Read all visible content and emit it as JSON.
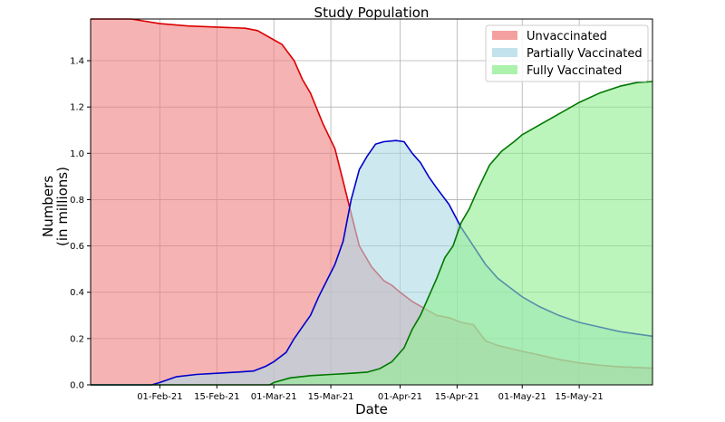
{
  "chart_data": {
    "type": "area",
    "title": "Study Population",
    "xlabel": "Date",
    "ylabel_line1": "Numbers",
    "ylabel_line2": "(in millions)",
    "x_range": [
      "2021-01-15",
      "2021-06-02"
    ],
    "ylim": [
      0,
      1.58
    ],
    "grid": true,
    "legend_position": "top-right",
    "x_ticks": [
      {
        "date": "2021-02-01",
        "label": "01-Feb-21"
      },
      {
        "date": "2021-02-15",
        "label": "15-Feb-21"
      },
      {
        "date": "2021-03-01",
        "label": "01-Mar-21"
      },
      {
        "date": "2021-03-15",
        "label": "15-Mar-21"
      },
      {
        "date": "2021-04-01",
        "label": "01-Apr-21"
      },
      {
        "date": "2021-04-15",
        "label": "15-Apr-21"
      },
      {
        "date": "2021-05-01",
        "label": "01-May-21"
      },
      {
        "date": "2021-05-15",
        "label": "15-May-21"
      }
    ],
    "y_ticks": [
      {
        "value": 0.0,
        "label": "0.0"
      },
      {
        "value": 0.2,
        "label": "0.2"
      },
      {
        "value": 0.4,
        "label": "0.4"
      },
      {
        "value": 0.6,
        "label": "0.6"
      },
      {
        "value": 0.8,
        "label": "0.8"
      },
      {
        "value": 1.0,
        "label": "1.0"
      },
      {
        "value": 1.2,
        "label": "1.2"
      },
      {
        "value": 1.4,
        "label": "1.4"
      }
    ],
    "series": [
      {
        "name": "Unvaccinated",
        "line_color": "#dd0000",
        "fill_color": "#f08080",
        "points": [
          [
            "2021-01-15",
            1.58
          ],
          [
            "2021-01-25",
            1.58
          ],
          [
            "2021-02-01",
            1.56
          ],
          [
            "2021-02-08",
            1.55
          ],
          [
            "2021-02-15",
            1.545
          ],
          [
            "2021-02-22",
            1.54
          ],
          [
            "2021-02-25",
            1.53
          ],
          [
            "2021-03-01",
            1.49
          ],
          [
            "2021-03-03",
            1.47
          ],
          [
            "2021-03-06",
            1.4
          ],
          [
            "2021-03-08",
            1.32
          ],
          [
            "2021-03-10",
            1.26
          ],
          [
            "2021-03-13",
            1.13
          ],
          [
            "2021-03-16",
            1.02
          ],
          [
            "2021-03-18",
            0.88
          ],
          [
            "2021-03-20",
            0.74
          ],
          [
            "2021-03-22",
            0.6
          ],
          [
            "2021-03-25",
            0.51
          ],
          [
            "2021-03-28",
            0.45
          ],
          [
            "2021-03-30",
            0.43
          ],
          [
            "2021-04-01",
            0.4
          ],
          [
            "2021-04-04",
            0.36
          ],
          [
            "2021-04-07",
            0.33
          ],
          [
            "2021-04-10",
            0.3
          ],
          [
            "2021-04-13",
            0.29
          ],
          [
            "2021-04-16",
            0.27
          ],
          [
            "2021-04-19",
            0.26
          ],
          [
            "2021-04-22",
            0.19
          ],
          [
            "2021-04-25",
            0.17
          ],
          [
            "2021-05-01",
            0.145
          ],
          [
            "2021-05-05",
            0.13
          ],
          [
            "2021-05-10",
            0.11
          ],
          [
            "2021-05-15",
            0.095
          ],
          [
            "2021-05-20",
            0.085
          ],
          [
            "2021-05-25",
            0.078
          ],
          [
            "2021-06-02",
            0.072
          ]
        ]
      },
      {
        "name": "Partially Vaccinated",
        "line_color": "#0000cc",
        "fill_color": "#add8e6",
        "points": [
          [
            "2021-01-15",
            0.0
          ],
          [
            "2021-01-30",
            0.0
          ],
          [
            "2021-02-01",
            0.01
          ],
          [
            "2021-02-05",
            0.035
          ],
          [
            "2021-02-10",
            0.045
          ],
          [
            "2021-02-15",
            0.05
          ],
          [
            "2021-02-20",
            0.055
          ],
          [
            "2021-02-24",
            0.06
          ],
          [
            "2021-02-27",
            0.08
          ],
          [
            "2021-03-01",
            0.1
          ],
          [
            "2021-03-04",
            0.14
          ],
          [
            "2021-03-06",
            0.2
          ],
          [
            "2021-03-08",
            0.25
          ],
          [
            "2021-03-10",
            0.3
          ],
          [
            "2021-03-12",
            0.38
          ],
          [
            "2021-03-14",
            0.45
          ],
          [
            "2021-03-16",
            0.52
          ],
          [
            "2021-03-18",
            0.62
          ],
          [
            "2021-03-20",
            0.8
          ],
          [
            "2021-03-22",
            0.93
          ],
          [
            "2021-03-24",
            0.99
          ],
          [
            "2021-03-26",
            1.04
          ],
          [
            "2021-03-28",
            1.05
          ],
          [
            "2021-03-31",
            1.055
          ],
          [
            "2021-04-02",
            1.05
          ],
          [
            "2021-04-04",
            1.0
          ],
          [
            "2021-04-06",
            0.96
          ],
          [
            "2021-04-08",
            0.9
          ],
          [
            "2021-04-10",
            0.85
          ],
          [
            "2021-04-13",
            0.78
          ],
          [
            "2021-04-16",
            0.68
          ],
          [
            "2021-04-19",
            0.6
          ],
          [
            "2021-04-22",
            0.52
          ],
          [
            "2021-04-25",
            0.46
          ],
          [
            "2021-04-28",
            0.42
          ],
          [
            "2021-05-01",
            0.38
          ],
          [
            "2021-05-05",
            0.34
          ],
          [
            "2021-05-10",
            0.3
          ],
          [
            "2021-05-15",
            0.27
          ],
          [
            "2021-05-20",
            0.25
          ],
          [
            "2021-05-25",
            0.23
          ],
          [
            "2021-06-02",
            0.21
          ]
        ]
      },
      {
        "name": "Fully Vaccinated",
        "line_color": "#007700",
        "fill_color": "#90ee90",
        "points": [
          [
            "2021-01-15",
            0.0
          ],
          [
            "2021-02-28",
            0.0
          ],
          [
            "2021-03-01",
            0.01
          ],
          [
            "2021-03-05",
            0.03
          ],
          [
            "2021-03-10",
            0.04
          ],
          [
            "2021-03-15",
            0.045
          ],
          [
            "2021-03-20",
            0.05
          ],
          [
            "2021-03-24",
            0.055
          ],
          [
            "2021-03-27",
            0.07
          ],
          [
            "2021-03-30",
            0.1
          ],
          [
            "2021-04-02",
            0.16
          ],
          [
            "2021-04-04",
            0.24
          ],
          [
            "2021-04-06",
            0.3
          ],
          [
            "2021-04-08",
            0.38
          ],
          [
            "2021-04-10",
            0.46
          ],
          [
            "2021-04-12",
            0.55
          ],
          [
            "2021-04-14",
            0.6
          ],
          [
            "2021-04-16",
            0.7
          ],
          [
            "2021-04-18",
            0.76
          ],
          [
            "2021-04-20",
            0.84
          ],
          [
            "2021-04-23",
            0.95
          ],
          [
            "2021-04-26",
            1.01
          ],
          [
            "2021-04-29",
            1.05
          ],
          [
            "2021-05-01",
            1.08
          ],
          [
            "2021-05-05",
            1.12
          ],
          [
            "2021-05-10",
            1.17
          ],
          [
            "2021-05-15",
            1.22
          ],
          [
            "2021-05-20",
            1.26
          ],
          [
            "2021-05-25",
            1.29
          ],
          [
            "2021-05-29",
            1.305
          ],
          [
            "2021-06-02",
            1.31
          ]
        ]
      }
    ]
  }
}
